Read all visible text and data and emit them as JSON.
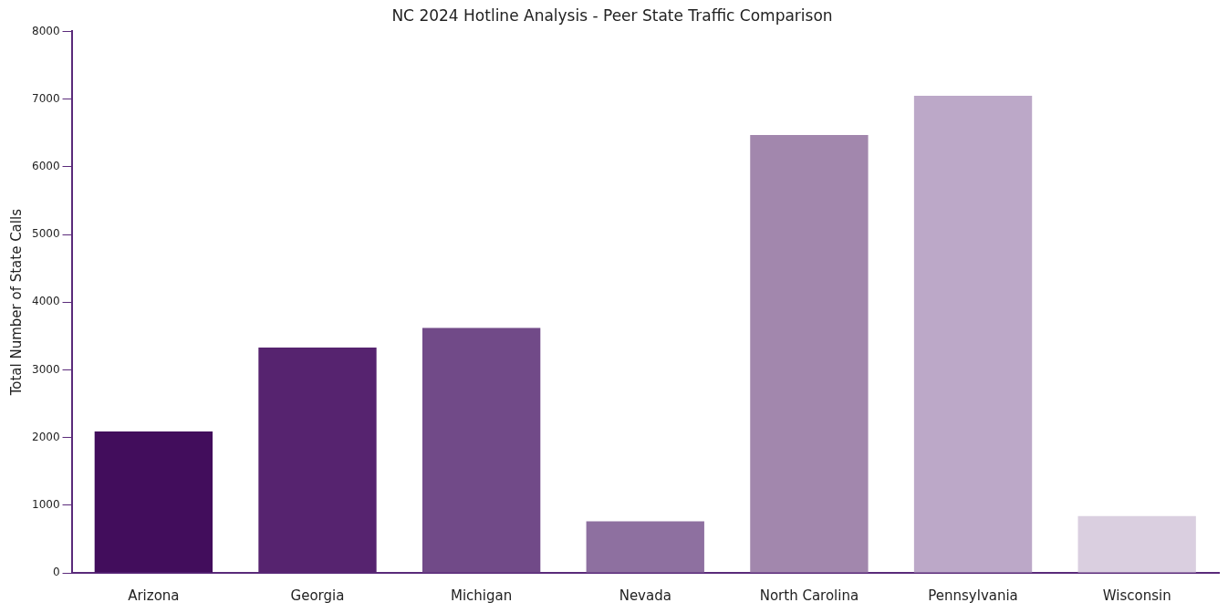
{
  "chart_data": {
    "type": "bar",
    "title": "NC 2024 Hotline Analysis - Peer State Traffic Comparison",
    "ylabel": "Total Number of State Calls",
    "categories": [
      "Arizona",
      "Georgia",
      "Michigan",
      "Nevada",
      "North Carolina",
      "Pennsylvania",
      "Wisconsin"
    ],
    "values": [
      2090,
      3330,
      3620,
      760,
      6470,
      7050,
      840
    ],
    "colors": [
      "#420d5c",
      "#56236f",
      "#714a88",
      "#8e70a0",
      "#a287ad",
      "#bca8c8",
      "#dacfe0"
    ],
    "ylim": [
      0,
      8000
    ],
    "yticks": [
      0,
      1000,
      2000,
      3000,
      4000,
      5000,
      6000,
      7000,
      8000
    ],
    "grid": false,
    "legend": false
  }
}
